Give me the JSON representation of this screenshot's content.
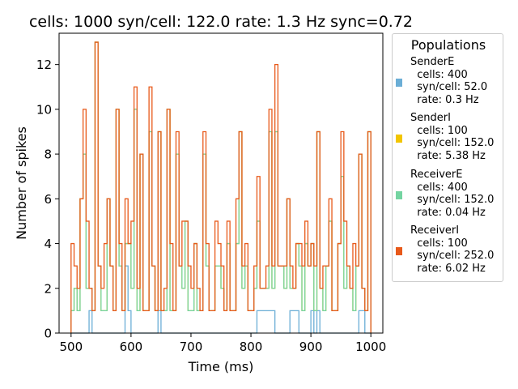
{
  "chart_data": {
    "type": "histogram",
    "title": "cells: 1000   syn/cell: 122.0   rate: 1.3 Hz    sync=0.72",
    "xlabel": "Time (ms)",
    "ylabel": "Number of spikes",
    "xlim": [
      480,
      1020
    ],
    "ylim": [
      0,
      13.4
    ],
    "xticks": [
      500,
      600,
      700,
      800,
      900,
      1000
    ],
    "yticks": [
      0,
      2,
      4,
      6,
      8,
      10,
      12
    ],
    "bin_width_ms": 5,
    "bin_start_ms": 500,
    "style": "step, stacked",
    "legend": {
      "title": "Populations",
      "placement": "outside right",
      "entries": [
        {
          "name": "SenderE",
          "lines": [
            "cells: 400",
            "syn/cell: 52.0",
            "rate: 0.3 Hz"
          ],
          "color": "#6baed6"
        },
        {
          "name": "SenderI",
          "lines": [
            "cells: 100",
            "syn/cell: 152.0",
            "rate: 5.38 Hz"
          ],
          "color": "#f2c500"
        },
        {
          "name": "ReceiverE",
          "lines": [
            "cells: 400",
            "syn/cell: 152.0",
            "rate: 0.04 Hz"
          ],
          "color": "#74d4a1"
        },
        {
          "name": "ReceiverI",
          "lines": [
            "cells: 100",
            "syn/cell: 252.0",
            "rate: 6.02 Hz"
          ],
          "color": "#e8591a"
        }
      ]
    },
    "series": [
      {
        "name": "SenderE",
        "color": "#6baed6",
        "values": [
          0,
          0,
          0,
          0,
          0,
          0,
          1,
          0,
          0,
          0,
          0,
          0,
          0,
          0,
          0,
          0,
          0,
          0,
          3,
          1,
          0,
          0,
          0,
          0,
          0,
          0,
          0,
          0,
          0,
          1,
          0,
          0,
          0,
          0,
          0,
          0,
          0,
          0,
          0,
          0,
          0,
          0,
          0,
          0,
          0,
          0,
          0,
          0,
          0,
          0,
          0,
          0,
          0,
          0,
          0,
          0,
          0,
          0,
          0,
          0,
          0,
          0,
          1,
          1,
          1,
          1,
          1,
          1,
          0,
          0,
          0,
          0,
          0,
          1,
          1,
          1,
          0,
          0,
          0,
          0,
          1,
          0,
          1,
          0,
          0,
          0,
          0,
          0,
          0,
          0,
          0,
          0,
          0,
          0,
          0,
          0,
          1,
          1,
          0,
          0
        ]
      },
      {
        "name": "SenderI",
        "color": "#f2c500",
        "values": [
          1,
          2,
          1,
          6,
          8,
          2,
          1,
          1,
          13,
          3,
          1,
          1,
          6,
          3,
          1,
          10,
          3,
          1,
          1,
          3,
          2,
          10,
          1,
          8,
          1,
          1,
          9,
          3,
          1,
          8,
          1,
          1,
          10,
          1,
          1,
          8,
          3,
          2,
          5,
          1,
          1,
          4,
          1,
          1,
          8,
          3,
          1,
          1,
          3,
          3,
          2,
          1,
          4,
          1,
          1,
          4,
          9,
          2,
          3,
          1,
          1,
          2,
          4,
          1,
          1,
          1,
          8,
          1,
          9,
          3,
          3,
          2,
          6,
          1,
          1,
          3,
          3,
          1,
          4,
          3,
          3,
          1,
          8,
          2,
          1,
          3,
          5,
          1,
          1,
          4,
          7,
          2,
          3,
          2,
          1,
          3,
          7,
          1,
          1,
          9
        ]
      },
      {
        "name": "ReceiverE",
        "color": "#74d4a1",
        "values": [
          0,
          0,
          0,
          0,
          0,
          0,
          0,
          0,
          0,
          0,
          0,
          0,
          0,
          0,
          0,
          0,
          0,
          0,
          0,
          0,
          0,
          0,
          0,
          0,
          0,
          0,
          0,
          0,
          0,
          0,
          0,
          0,
          0,
          0,
          0,
          0,
          0,
          0,
          0,
          0,
          0,
          0,
          0,
          0,
          0,
          0,
          0,
          0,
          0,
          0,
          0,
          0,
          0,
          0,
          0,
          0,
          0,
          0,
          0,
          0,
          0,
          0,
          0,
          0,
          0,
          0,
          0,
          0,
          0,
          0,
          0,
          0,
          0,
          0,
          0,
          0,
          0,
          0,
          0,
          0,
          0,
          0,
          0,
          0,
          0,
          0,
          0,
          0,
          0,
          0,
          0,
          0,
          0,
          0,
          0,
          0,
          0,
          0,
          0,
          0
        ]
      },
      {
        "name": "ReceiverI",
        "color": "#e8591a",
        "values": [
          3,
          1,
          1,
          0,
          2,
          3,
          0,
          0,
          0,
          0,
          1,
          3,
          0,
          0,
          0,
          0,
          1,
          0,
          2,
          0,
          3,
          1,
          1,
          0,
          0,
          0,
          2,
          0,
          0,
          0,
          0,
          1,
          0,
          3,
          0,
          1,
          0,
          3,
          0,
          2,
          1,
          0,
          1,
          0,
          1,
          1,
          0,
          0,
          2,
          1,
          1,
          0,
          1,
          0,
          0,
          2,
          0,
          1,
          1,
          0,
          0,
          1,
          2,
          0,
          0,
          1,
          1,
          1,
          3,
          0,
          0,
          1,
          0,
          1,
          0,
          0,
          1,
          2,
          1,
          0,
          0,
          2,
          0,
          0,
          2,
          0,
          1,
          0,
          0,
          0,
          2,
          3,
          0,
          0,
          3,
          0,
          0,
          0,
          0,
          0
        ]
      }
    ]
  }
}
